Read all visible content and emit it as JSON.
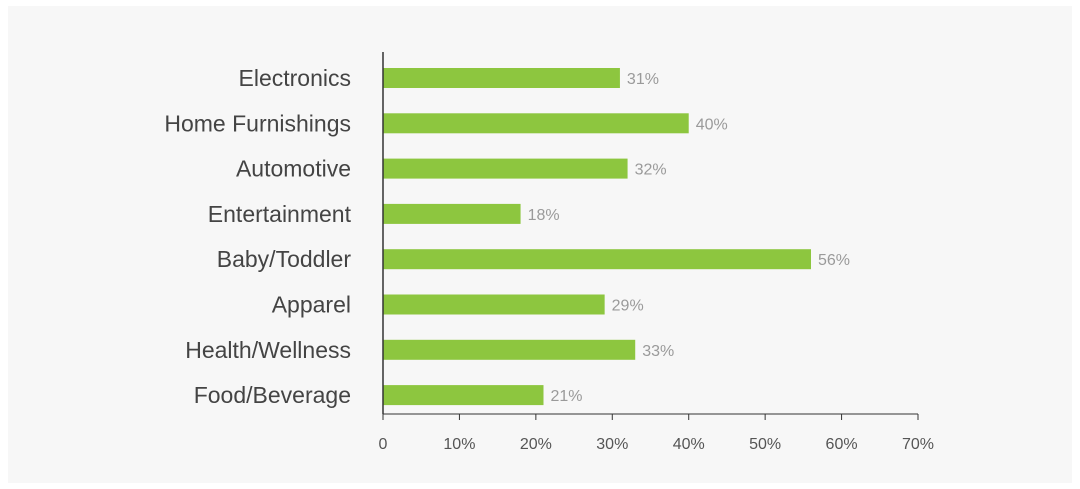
{
  "chart_data": {
    "type": "bar",
    "orientation": "horizontal",
    "categories": [
      "Electronics",
      "Home Furnishings",
      "Automotive",
      "Entertainment",
      "Baby/Toddler",
      "Apparel",
      "Health/Wellness",
      "Food/Beverage"
    ],
    "values": [
      31,
      40,
      32,
      18,
      56,
      29,
      33,
      21
    ],
    "value_labels": [
      "31%",
      "40%",
      "32%",
      "18%",
      "56%",
      "29%",
      "33%",
      "21%"
    ],
    "xlim": [
      0,
      70
    ],
    "xticks": [
      0,
      10,
      20,
      30,
      40,
      50,
      60,
      70
    ],
    "xtick_labels": [
      "0",
      "10%",
      "20%",
      "30%",
      "40%",
      "50%",
      "60%",
      "70%"
    ],
    "grid": false,
    "colors": {
      "bar": "#8dc63f",
      "value_label": "#9a9a9a",
      "axis": "#333333",
      "background": "#f7f7f7"
    }
  }
}
